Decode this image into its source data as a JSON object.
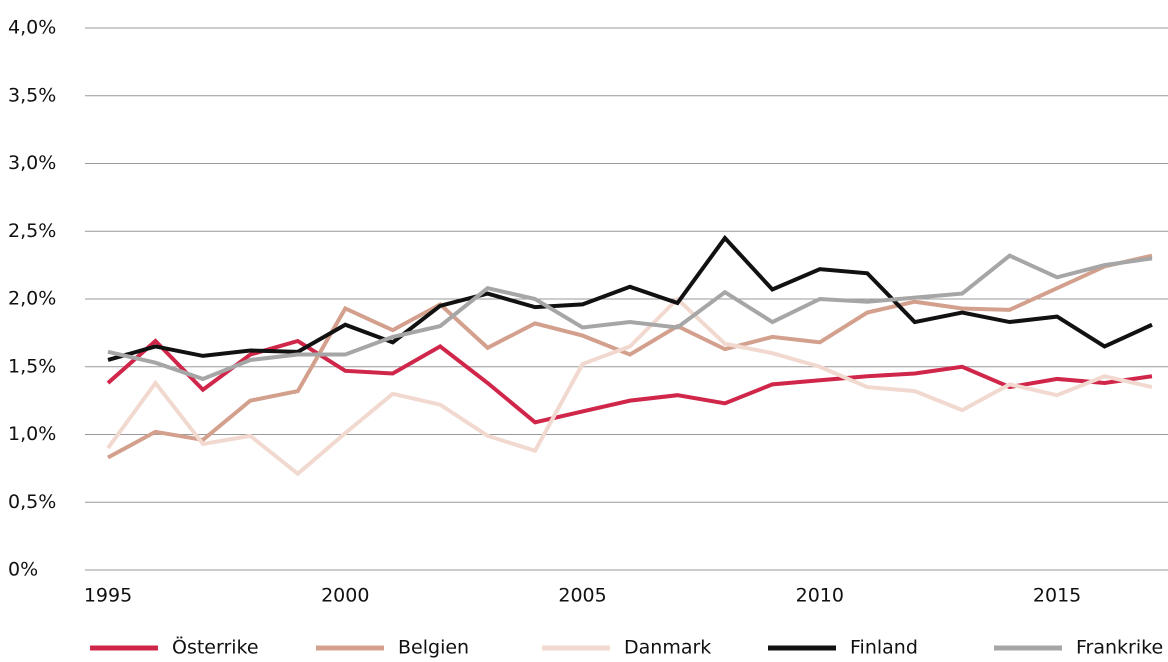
{
  "chart_data": {
    "type": "line",
    "x": [
      1995,
      1996,
      1997,
      1998,
      1999,
      2000,
      2001,
      2002,
      2003,
      2004,
      2005,
      2006,
      2007,
      2008,
      2009,
      2010,
      2011,
      2012,
      2013,
      2014,
      2015,
      2016,
      2017
    ],
    "xlim": [
      1995,
      2017
    ],
    "xticks": [
      1995,
      2000,
      2005,
      2010,
      2015
    ],
    "ylim": [
      0,
      4
    ],
    "yticks": [
      {
        "value": 0,
        "label": "0%"
      },
      {
        "value": 0.5,
        "label": "0,5%"
      },
      {
        "value": 1,
        "label": "1,0%"
      },
      {
        "value": 1.5,
        "label": "1,5%"
      },
      {
        "value": 2,
        "label": "2,0%"
      },
      {
        "value": 2.5,
        "label": "2,5%"
      },
      {
        "value": 3,
        "label": "3,0%"
      },
      {
        "value": 3.5,
        "label": "3,5%"
      },
      {
        "value": 4,
        "label": "4,0%"
      }
    ],
    "grid": true,
    "series": [
      {
        "name": "Österrike",
        "color": "#d0264a",
        "values": [
          1.38,
          1.69,
          1.33,
          1.59,
          1.69,
          1.47,
          1.45,
          1.65,
          1.38,
          1.09,
          1.17,
          1.25,
          1.29,
          1.23,
          1.37,
          1.4,
          1.43,
          1.45,
          1.5,
          1.35,
          1.41,
          1.38,
          1.43
        ]
      },
      {
        "name": "Belgien",
        "color": "#d4a08e",
        "values": [
          0.83,
          1.02,
          0.96,
          1.25,
          1.32,
          1.93,
          1.77,
          1.96,
          1.64,
          1.82,
          1.73,
          1.59,
          1.8,
          1.63,
          1.72,
          1.68,
          1.9,
          1.98,
          1.93,
          1.92,
          2.08,
          2.24,
          2.32
        ]
      },
      {
        "name": "Danmark",
        "color": "#f1d9d0",
        "values": [
          0.9,
          1.38,
          0.93,
          0.99,
          0.71,
          1.01,
          1.3,
          1.22,
          0.99,
          0.88,
          1.52,
          1.65,
          2.0,
          1.67,
          1.6,
          1.5,
          1.35,
          1.32,
          1.18,
          1.37,
          1.29,
          1.43,
          1.35
        ]
      },
      {
        "name": "Finland",
        "color": "#111111",
        "values": [
          1.55,
          1.65,
          1.58,
          1.62,
          1.61,
          1.81,
          1.68,
          1.95,
          2.04,
          1.94,
          1.96,
          2.09,
          1.97,
          2.45,
          2.07,
          2.22,
          2.19,
          1.83,
          1.9,
          1.83,
          1.87,
          1.65,
          1.81
        ]
      },
      {
        "name": "Frankrike",
        "color": "#a6a6a6",
        "values": [
          1.61,
          1.53,
          1.41,
          1.55,
          1.59,
          1.59,
          1.72,
          1.8,
          2.08,
          2.0,
          1.79,
          1.83,
          1.79,
          2.05,
          1.83,
          2.0,
          1.98,
          2.01,
          2.04,
          2.32,
          2.16,
          2.25,
          2.3
        ]
      }
    ]
  }
}
